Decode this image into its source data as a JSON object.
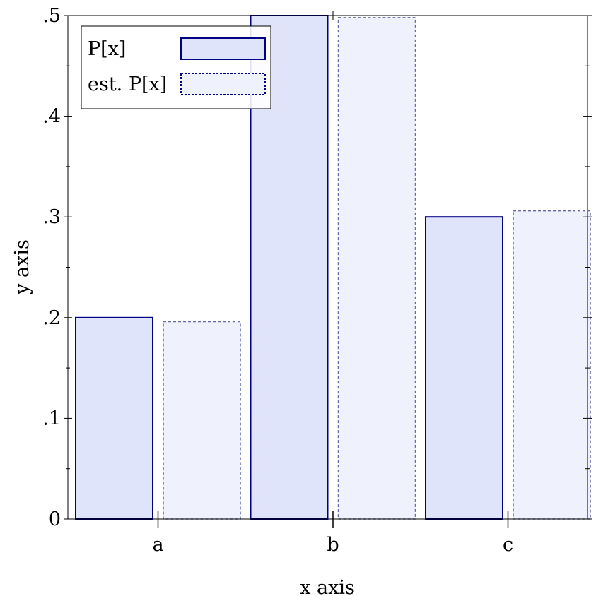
{
  "chart_data": {
    "type": "bar",
    "categories": [
      "a",
      "b",
      "c"
    ],
    "series": [
      {
        "name": "P[x]",
        "values": [
          0.2,
          0.5,
          0.3
        ],
        "fill": "#e0e4fa",
        "stroke": "#000080",
        "style": "solid"
      },
      {
        "name": "est. P[x]",
        "values": [
          0.196,
          0.498,
          0.306
        ],
        "fill": "#eff1fc",
        "stroke": "#6a6aa8",
        "style": "dashed"
      }
    ],
    "xlabel": "x axis",
    "ylabel": "y axis",
    "ylim": [
      0,
      0.5
    ],
    "y_ticks": [
      {
        "value": 0,
        "label": "0"
      },
      {
        "value": 0.1,
        "label": ".1"
      },
      {
        "value": 0.2,
        "label": ".2"
      },
      {
        "value": 0.3,
        "label": ".3"
      },
      {
        "value": 0.4,
        "label": ".4"
      },
      {
        "value": 0.5,
        "label": ".5"
      }
    ],
    "legend": {
      "placement": "top-left",
      "entries": [
        "P[x]",
        "est. P[x]"
      ]
    },
    "grid": false
  }
}
